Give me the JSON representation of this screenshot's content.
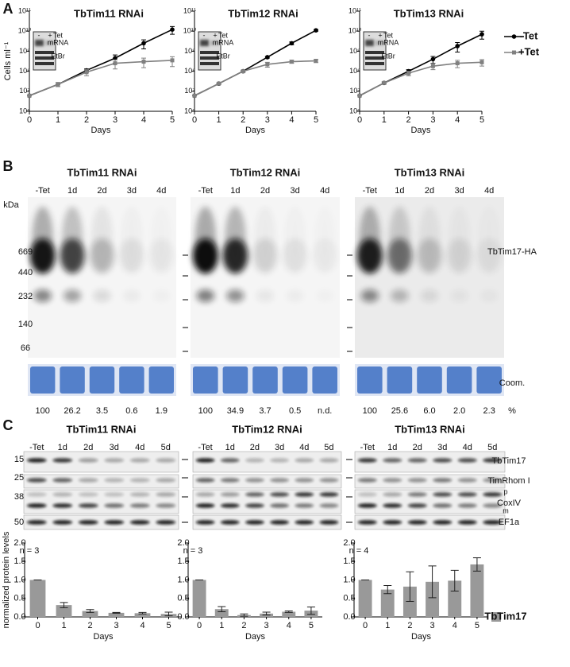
{
  "panel_labels": [
    "A",
    "B",
    "C"
  ],
  "chart_data": [
    {
      "type": "line",
      "title": "TbTim11 RNAi",
      "y_label": "Cells ml⁻¹",
      "x_label": "Days",
      "log_y": true,
      "x": [
        0,
        1,
        2,
        3,
        4,
        5
      ],
      "xlim": [
        0,
        5
      ],
      "xticks": [
        0,
        1,
        2,
        3,
        4,
        5
      ],
      "ylim": [
        1000000,
        100000000000
      ],
      "yticks": [
        {
          "value": 1000000,
          "label": "10⁶"
        },
        {
          "value": 10000000,
          "label": "10⁷"
        },
        {
          "value": 100000000,
          "label": "10⁸"
        },
        {
          "value": 1000000000,
          "label": "10⁹"
        },
        {
          "value": 10000000000,
          "label": "10¹⁰"
        },
        {
          "value": 100000000000,
          "label": "10¹¹"
        }
      ],
      "inset_labels": {
        "minus": "-",
        "plus": "+",
        "treatment": "Tet",
        "rows": [
          "mRNA",
          "EtBr"
        ]
      },
      "series": [
        {
          "color": "#000000",
          "marker": "circle",
          "values": [
            6000000,
            22000000,
            110000000,
            450000000,
            2500000000,
            12000000000
          ],
          "errors": [
            0,
            5000000,
            20000000,
            200000000,
            1200000000,
            5000000000
          ]
        },
        {
          "color": "#808080",
          "marker": "square",
          "values": [
            6000000,
            22000000,
            90000000,
            250000000,
            300000000,
            350000000
          ],
          "errors": [
            0,
            5000000,
            30000000,
            120000000,
            150000000,
            180000000
          ]
        }
      ]
    },
    {
      "type": "line",
      "title": "TbTim12 RNAi",
      "x_label": "Days",
      "log_y": true,
      "x": [
        0,
        1,
        2,
        3,
        4,
        5
      ],
      "xlim": [
        0,
        5
      ],
      "xticks": [
        0,
        1,
        2,
        3,
        4,
        5
      ],
      "ylim": [
        1000000,
        100000000000
      ],
      "yticks": [
        {
          "value": 1000000,
          "label": "10⁶"
        },
        {
          "value": 10000000,
          "label": "10⁷"
        },
        {
          "value": 100000000,
          "label": "10⁸"
        },
        {
          "value": 1000000000,
          "label": "10⁹"
        },
        {
          "value": 10000000000,
          "label": "10¹⁰"
        },
        {
          "value": 100000000000,
          "label": "10¹¹"
        }
      ],
      "inset_labels": {
        "minus": "-",
        "plus": "+",
        "treatment": "Tet",
        "rows": [
          "mRNA",
          "EtBr"
        ]
      },
      "series": [
        {
          "color": "#000000",
          "marker": "circle",
          "values": [
            6000000,
            24000000,
            100000000,
            500000000,
            2500000000,
            11000000000
          ],
          "errors": [
            0,
            2000000,
            10000000,
            50000000,
            400000000,
            1000000000
          ]
        },
        {
          "color": "#808080",
          "marker": "square",
          "values": [
            6000000,
            24000000,
            100000000,
            220000000,
            300000000,
            330000000
          ],
          "errors": [
            0,
            2000000,
            10000000,
            60000000,
            50000000,
            60000000
          ]
        }
      ]
    },
    {
      "type": "line",
      "title": "TbTim13 RNAi",
      "x_label": "Days",
      "log_y": true,
      "legend": "right",
      "x": [
        0,
        1,
        2,
        3,
        4,
        5
      ],
      "xlim": [
        0,
        5
      ],
      "xticks": [
        0,
        1,
        2,
        3,
        4,
        5
      ],
      "ylim": [
        1000000,
        100000000000
      ],
      "yticks": [
        {
          "value": 1000000,
          "label": "10⁶"
        },
        {
          "value": 10000000,
          "label": "10⁷"
        },
        {
          "value": 100000000,
          "label": "10⁸"
        },
        {
          "value": 1000000000,
          "label": "10⁹"
        },
        {
          "value": 10000000000,
          "label": "10¹⁰"
        },
        {
          "value": 100000000000,
          "label": "10¹¹"
        }
      ],
      "inset_labels": {
        "minus": "-",
        "plus": "+",
        "treatment": "Tet",
        "rows": [
          "mRNA",
          "EtBr"
        ]
      },
      "series": [
        {
          "name": "-Tet",
          "color": "#000000",
          "marker": "circle",
          "values": [
            6000000,
            26000000,
            100000000,
            400000000,
            1800000000,
            7000000000
          ],
          "errors": [
            0,
            3000000,
            20000000,
            150000000,
            900000000,
            3000000000
          ]
        },
        {
          "name": "+Tet",
          "color": "#808080",
          "marker": "square",
          "values": [
            6000000,
            26000000,
            80000000,
            180000000,
            250000000,
            280000000
          ],
          "errors": [
            0,
            3000000,
            20000000,
            60000000,
            100000000,
            100000000
          ]
        }
      ]
    },
    {
      "type": "bar",
      "y_label": "normalized protein levels",
      "x_label": "Days",
      "annotation": "n = 3",
      "categories": [
        "0",
        "1",
        "2",
        "3",
        "4",
        "5"
      ],
      "ylim": [
        0,
        2
      ],
      "yticks": [
        {
          "value": 0,
          "label": "0.0"
        },
        {
          "value": 0.5,
          "label": "0.5"
        },
        {
          "value": 1,
          "label": "1.0"
        },
        {
          "value": 1.5,
          "label": "1.5"
        },
        {
          "value": 2,
          "label": "2.0"
        }
      ],
      "series": [
        {
          "color": "#999999",
          "values": [
            1.0,
            0.32,
            0.16,
            0.11,
            0.1,
            0.08
          ],
          "errors": [
            0,
            0.07,
            0.04,
            0.01,
            0.02,
            0.05
          ]
        }
      ]
    },
    {
      "type": "bar",
      "x_label": "Days",
      "annotation": "n = 3",
      "categories": [
        "0",
        "1",
        "2",
        "3",
        "4",
        "5"
      ],
      "ylim": [
        0,
        2
      ],
      "yticks": [
        {
          "value": 0,
          "label": "0.0"
        },
        {
          "value": 0.5,
          "label": "0.5"
        },
        {
          "value": 1,
          "label": "1.0"
        },
        {
          "value": 1.5,
          "label": "1.5"
        },
        {
          "value": 2,
          "label": "2.0"
        }
      ],
      "series": [
        {
          "color": "#999999",
          "values": [
            1.0,
            0.21,
            0.05,
            0.09,
            0.14,
            0.17
          ],
          "errors": [
            0,
            0.07,
            0.03,
            0.04,
            0.02,
            0.1
          ]
        }
      ]
    },
    {
      "type": "bar",
      "x_label": "Days",
      "annotation": "n = 4",
      "legend": "right",
      "categories": [
        "0",
        "1",
        "2",
        "3",
        "4",
        "5"
      ],
      "ylim": [
        0,
        2
      ],
      "yticks": [
        {
          "value": 0,
          "label": "0.0"
        },
        {
          "value": 0.5,
          "label": "0.5"
        },
        {
          "value": 1,
          "label": "1.0"
        },
        {
          "value": 1.5,
          "label": "1.5"
        },
        {
          "value": 2,
          "label": "2.0"
        }
      ],
      "series": [
        {
          "name": "TbTim17",
          "color": "#999999",
          "values": [
            1.0,
            0.74,
            0.82,
            0.95,
            0.98,
            1.42
          ],
          "errors": [
            0,
            0.11,
            0.4,
            0.43,
            0.28,
            0.18
          ]
        }
      ]
    }
  ],
  "blots_b": {
    "unit_title": "kDa",
    "markers": [
      "669",
      "440",
      "232",
      "140",
      "66"
    ],
    "band_label": "TbTim17-HA",
    "stain_label": "Coom.",
    "unit_label": "%",
    "panels": [
      {
        "title": "TbTim11 RNAi",
        "lanes": [
          "-Tet",
          "1d",
          "2d",
          "3d",
          "4d"
        ],
        "quant": [
          "100",
          "26.2",
          "3.5",
          "0.6",
          "1.9"
        ]
      },
      {
        "title": "TbTim12 RNAi",
        "lanes": [
          "-Tet",
          "1d",
          "2d",
          "3d",
          "4d"
        ],
        "quant": [
          "100",
          "34.9",
          "3.7",
          "0.5",
          "n.d."
        ]
      },
      {
        "title": "TbTim13 RNAi",
        "lanes": [
          "-Tet",
          "1d",
          "2d",
          "3d",
          "4d"
        ],
        "quant": [
          "100",
          "25.6",
          "6.0",
          "2.0",
          "2.3"
        ]
      }
    ]
  },
  "blots_c": {
    "markers": [
      "15",
      "25",
      "38",
      "50"
    ],
    "rows": [
      "TbTim17",
      "TimRhom I",
      "CoxIV",
      "EF1a"
    ],
    "forms": [
      "p",
      "m"
    ],
    "panels": [
      {
        "title": "TbTim11 RNAi",
        "lanes": [
          "-Tet",
          "1d",
          "2d",
          "3d",
          "4d",
          "5d"
        ]
      },
      {
        "title": "TbTim12 RNAi",
        "lanes": [
          "-Tet",
          "1d",
          "2d",
          "3d",
          "4d",
          "5d"
        ]
      },
      {
        "title": "TbTim13 RNAi",
        "lanes": [
          "-Tet",
          "1d",
          "2d",
          "3d",
          "4d",
          "5d"
        ]
      }
    ]
  }
}
